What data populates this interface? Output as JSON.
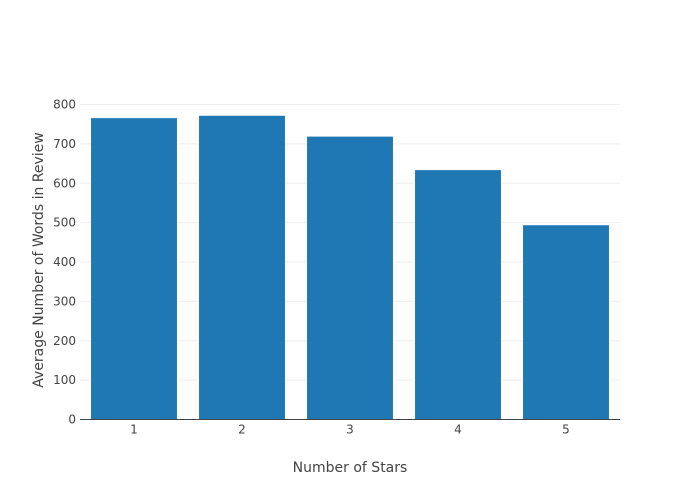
{
  "chart_data": {
    "type": "bar",
    "title": "",
    "xlabel": "Number of Stars",
    "ylabel": "Average Number of Words in Review",
    "categories": [
      "1",
      "2",
      "3",
      "4",
      "5"
    ],
    "values": [
      766,
      772,
      719,
      634,
      494
    ],
    "ylim": [
      0,
      800
    ],
    "yticks": [
      0,
      100,
      200,
      300,
      400,
      500,
      600,
      700,
      800
    ],
    "grid": true,
    "bar_color": "#1f77b4"
  }
}
